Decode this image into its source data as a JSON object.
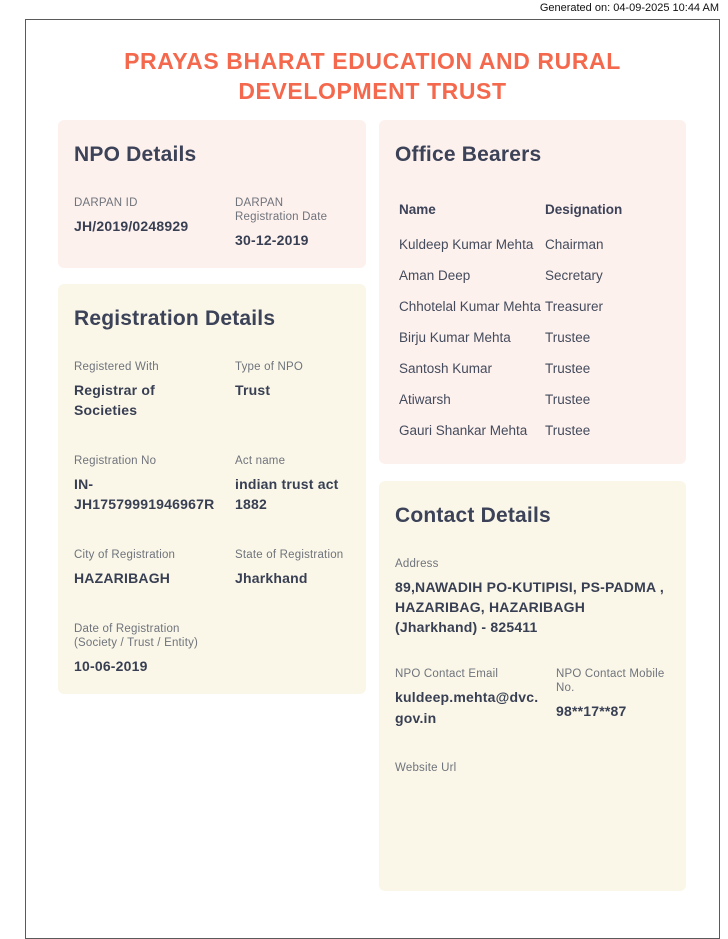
{
  "generated_on": "Generated on: 04-09-2025 10:44 AM",
  "title": "PRAYAS BHARAT EDUCATION AND RURAL DEVELOPMENT TRUST",
  "colors": {
    "accent_title": "#f4694d",
    "heading_text": "#3c4257",
    "label_text": "#6f737b",
    "value_text": "#383f52",
    "card_pink": "#fdf1ee",
    "card_cream": "#faf7e9"
  },
  "npo_details": {
    "heading": "NPO Details",
    "fields": [
      {
        "label": "DARPAN ID",
        "value": "JH/2019/0248929"
      },
      {
        "label": "DARPAN Registration Date",
        "value": "30-12-2019"
      }
    ]
  },
  "registration_details": {
    "heading": "Registration Details",
    "fields": [
      {
        "label": "Registered With",
        "value": "Registrar of Societies"
      },
      {
        "label": "Type of NPO",
        "value": "Trust"
      },
      {
        "label": "Registration No",
        "value": "IN-JH17579991946967R"
      },
      {
        "label": "Act name",
        "value": "indian trust act 1882"
      },
      {
        "label": "City of Registration",
        "value": "HAZARIBAGH"
      },
      {
        "label": "State of Registration",
        "value": "Jharkhand"
      },
      {
        "label": "Date of Registration (Society / Trust / Entity)",
        "value": "10-06-2019"
      }
    ]
  },
  "office_bearers": {
    "heading": "Office Bearers",
    "columns": {
      "name": "Name",
      "designation": "Designation"
    },
    "rows": [
      {
        "name": "Kuldeep Kumar Mehta",
        "designation": "Chairman"
      },
      {
        "name": "Aman Deep",
        "designation": "Secretary"
      },
      {
        "name": "Chhotelal Kumar Mehta",
        "designation": "Treasurer"
      },
      {
        "name": "Birju Kumar Mehta",
        "designation": "Trustee"
      },
      {
        "name": "Santosh Kumar",
        "designation": "Trustee"
      },
      {
        "name": "Atiwarsh",
        "designation": "Trustee"
      },
      {
        "name": "Gauri Shankar Mehta",
        "designation": "Trustee"
      }
    ]
  },
  "contact_details": {
    "heading": "Contact Details",
    "address_label": "Address",
    "address_value": "89,NAWADIH PO-KUTIPISI, PS-PADMA , HAZARIBAG, HAZARIBAGH (Jharkhand) - 825411",
    "email_label": "NPO Contact Email",
    "email_value": "kuldeep.mehta@dvc.gov.in",
    "mobile_label": "NPO Contact Mobile No.",
    "mobile_value": "98**17**87",
    "website_label": "Website Url"
  }
}
